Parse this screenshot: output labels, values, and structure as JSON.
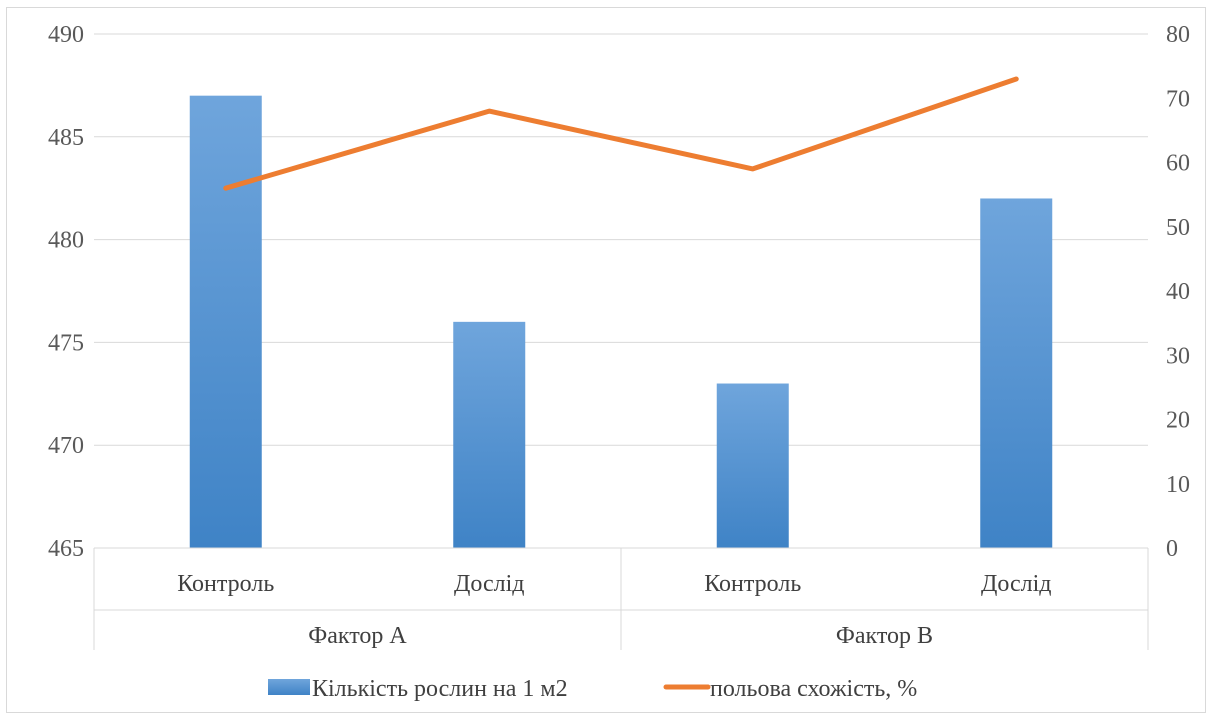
{
  "chart_data": {
    "type": "bar",
    "categories": [
      "Контроль",
      "Дослід",
      "Контроль",
      "Дослід"
    ],
    "groups": [
      {
        "label": "Фактор А",
        "span": [
          0,
          1
        ]
      },
      {
        "label": "Фактор В",
        "span": [
          2,
          3
        ]
      }
    ],
    "series": [
      {
        "name": "Кількість рослин на 1 м2",
        "type": "bar",
        "axis": "left",
        "color": "#5b9bd5",
        "values": [
          487,
          476,
          473,
          482
        ]
      },
      {
        "name": "польова схожість, %",
        "type": "line",
        "axis": "right",
        "color": "#ed7d31",
        "values": [
          56,
          68,
          59,
          73
        ]
      }
    ],
    "y_left": {
      "min": 465,
      "max": 490,
      "ticks": [
        465,
        470,
        475,
        480,
        485,
        490
      ]
    },
    "y_right": {
      "min": 0,
      "max": 80,
      "ticks": [
        0,
        10,
        20,
        30,
        40,
        50,
        60,
        70,
        80
      ]
    },
    "grid": true,
    "legend_position": "bottom"
  }
}
